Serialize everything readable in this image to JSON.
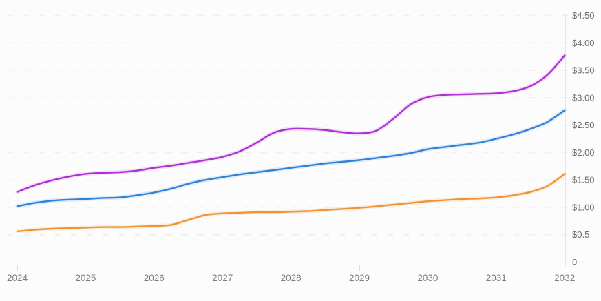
{
  "chart_data": {
    "type": "line",
    "title": "",
    "xlabel": "",
    "ylabel": "",
    "xlim": [
      2024,
      2032
    ],
    "ylim": [
      0,
      4.5
    ],
    "grid": "horizontal-dashed",
    "legend": "none",
    "y_axis_side": "right",
    "x": [
      2024,
      2024.25,
      2024.5,
      2024.75,
      2025,
      2025.25,
      2025.5,
      2025.75,
      2026,
      2026.25,
      2026.5,
      2026.75,
      2027,
      2027.25,
      2027.5,
      2027.75,
      2028,
      2028.25,
      2028.5,
      2028.75,
      2029,
      2029.25,
      2029.5,
      2029.75,
      2030,
      2030.25,
      2030.5,
      2030.75,
      2031,
      2031.25,
      2031.5,
      2031.75,
      2032
    ],
    "series": [
      {
        "name": "magenta-line",
        "color": "#ae2fd4",
        "values": [
          1.28,
          1.4,
          1.49,
          1.56,
          1.61,
          1.63,
          1.64,
          1.67,
          1.72,
          1.76,
          1.81,
          1.86,
          1.92,
          2.02,
          2.18,
          2.36,
          2.43,
          2.43,
          2.41,
          2.37,
          2.35,
          2.4,
          2.62,
          2.88,
          3.01,
          3.05,
          3.06,
          3.07,
          3.08,
          3.12,
          3.21,
          3.42,
          3.77
        ]
      },
      {
        "name": "blue-line",
        "color": "#2e82d8",
        "values": [
          1.02,
          1.08,
          1.12,
          1.14,
          1.15,
          1.17,
          1.18,
          1.22,
          1.27,
          1.34,
          1.43,
          1.5,
          1.55,
          1.6,
          1.64,
          1.68,
          1.72,
          1.76,
          1.8,
          1.83,
          1.86,
          1.9,
          1.94,
          1.99,
          2.06,
          2.1,
          2.14,
          2.18,
          2.25,
          2.33,
          2.43,
          2.56,
          2.77
        ]
      },
      {
        "name": "orange-line",
        "color": "#ee9434",
        "values": [
          0.56,
          0.59,
          0.61,
          0.62,
          0.63,
          0.64,
          0.64,
          0.65,
          0.66,
          0.68,
          0.77,
          0.86,
          0.89,
          0.9,
          0.91,
          0.91,
          0.92,
          0.93,
          0.95,
          0.97,
          0.99,
          1.02,
          1.05,
          1.08,
          1.11,
          1.13,
          1.15,
          1.16,
          1.18,
          1.22,
          1.28,
          1.39,
          1.61
        ]
      }
    ],
    "x_ticks": [
      {
        "label": "2024",
        "value": 2024
      },
      {
        "label": "2025",
        "value": 2025
      },
      {
        "label": "2026",
        "value": 2026
      },
      {
        "label": "2027",
        "value": 2027
      },
      {
        "label": "2028",
        "value": 2028
      },
      {
        "label": "2029",
        "value": 2029
      },
      {
        "label": "2030",
        "value": 2030
      },
      {
        "label": "2031",
        "value": 2031
      },
      {
        "label": "2032",
        "value": 2032
      }
    ],
    "y_ticks": [
      {
        "label": "$4.50",
        "value": 4.5
      },
      {
        "label": "$4.00",
        "value": 4.0
      },
      {
        "label": "$3.50",
        "value": 3.5
      },
      {
        "label": "$3.00",
        "value": 3.0
      },
      {
        "label": "$2.50",
        "value": 2.5
      },
      {
        "label": "$2.00",
        "value": 2.0
      },
      {
        "label": "$1.50",
        "value": 1.5
      },
      {
        "label": "$1.00",
        "value": 1.0
      },
      {
        "label": "$0.5",
        "value": 0.5
      },
      {
        "label": "0",
        "value": 0
      }
    ],
    "axis_tick_marks_at_years": [
      2024,
      2029
    ]
  },
  "colors": {
    "background": "#fcfcfc",
    "gridline": "#f0f0f0",
    "axis_line": "#dcdcdc",
    "tick_mark": "#c9c9c9",
    "y_label": "#6e6e6e",
    "x_label": "#7d7d7d"
  }
}
